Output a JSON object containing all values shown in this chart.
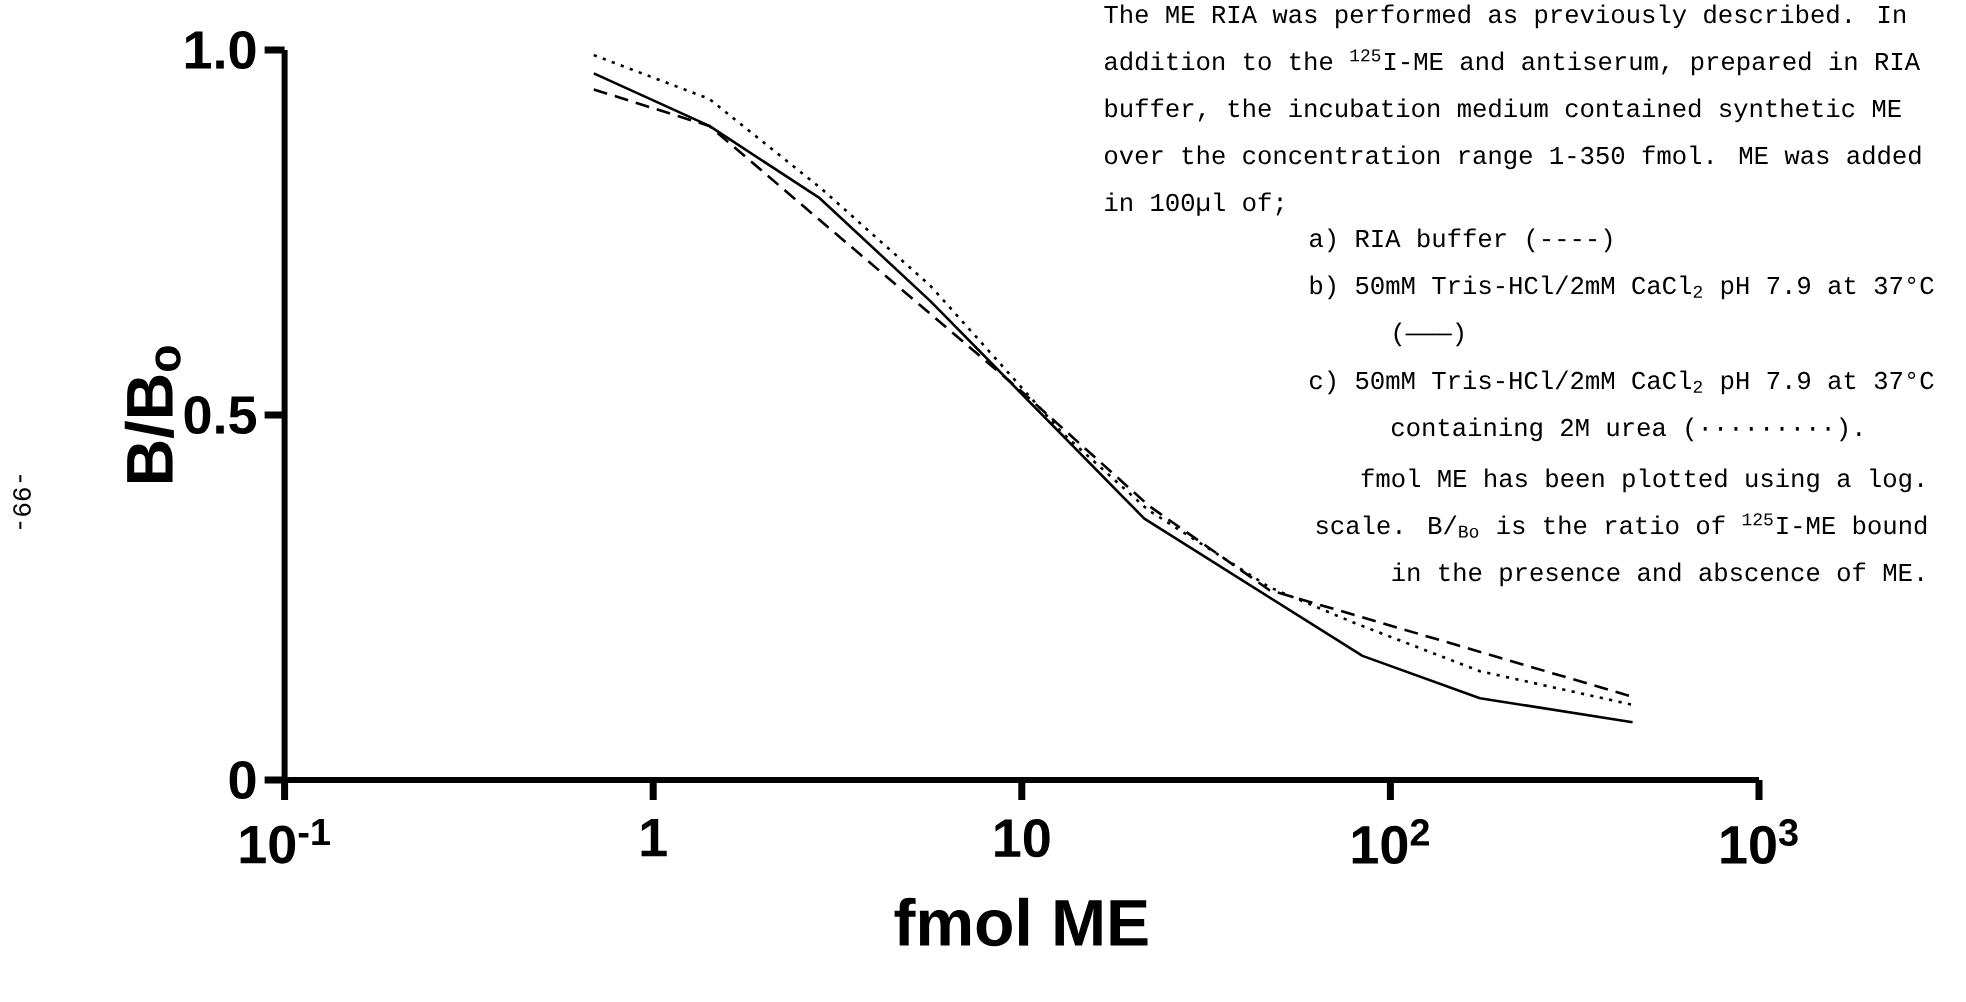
{
  "chart_data": {
    "type": "line",
    "xlabel": "fmol ME",
    "ylabel": "B/B$_{o}$",
    "log": "x",
    "xlim": [
      0.1,
      1000
    ],
    "ylim": [
      0,
      1
    ],
    "xticks": [
      {
        "value": 0.1,
        "label": "10$^{-1}$"
      },
      1,
      10,
      {
        "value": 100,
        "label": "10$^{2}$"
      },
      {
        "value": 1000,
        "label": "10$^{3}$"
      }
    ],
    "yticks": [
      0,
      0.5,
      {
        "value": 1,
        "label": "1.0"
      }
    ],
    "grid": false,
    "marker": "none",
    "series": [
      {
        "color": "#000000",
        "line_style": "dashed",
        "x": [
          0.69,
          1.42,
          2.83,
          9.8,
          22.2,
          47,
          80,
          454
        ],
        "values": [
          0.946,
          0.896,
          0.767,
          0.536,
          0.375,
          0.26,
          0.226,
          0.114
        ]
      },
      {
        "color": "#000000",
        "line_style": "solid",
        "x": [
          0.69,
          1.42,
          2.83,
          5.65,
          21.5,
          84,
          175,
          454
        ],
        "values": [
          0.968,
          0.896,
          0.797,
          0.656,
          0.358,
          0.17,
          0.112,
          0.079
        ]
      },
      {
        "color": "#000000",
        "line_style": "dotted",
        "x": [
          0.69,
          1.42,
          2.83,
          5.65,
          12.9,
          22,
          47,
          80,
          175,
          454
        ],
        "values": [
          0.993,
          0.933,
          0.812,
          0.677,
          0.475,
          0.37,
          0.264,
          0.215,
          0.149,
          0.103
        ]
      }
    ],
    "annotations": [
      "-99-",
      "The ME RIA was performed as previously described. In addition to the $^{125}$I-ME and antiserum, prepared in RIA buffer, the incubation medium contained synthetic ME over the concentration range 1-350 fmol. ME was added in 100µl of;",
      "a) RIA buffer (----)",
      "b) 50mM Tris-HCl/2mM CaCl$_{2}$ pH 7.9 at 37°C (———)",
      "c) 50mM Tris-HCl/2mM CaCl$_{2}$ pH 7.9 at 37°C containing 2M urea (·········).",
      "fmol ME has been plotted using a log. scale. B/$_{Bo}$ is the ratio of $^{125}$I-ME bound in the presence and abscence of ME."
    ]
  }
}
